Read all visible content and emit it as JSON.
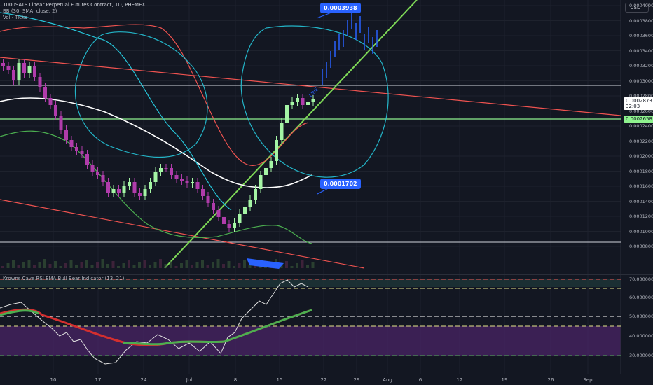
{
  "header": {
    "symbol_line": "1000SATS Linear Perpetual Futures Contract, 1D, PHEMEX",
    "indicator_bb": "BB (30, SMA, close, 2)",
    "indicator_vol": "Vol · Ticks",
    "currency": "USDT"
  },
  "price_axis": {
    "labels": [
      "0.0004000",
      "0.0003800",
      "0.0003600",
      "0.0003400",
      "0.0003200",
      "0.0003000",
      "0.0002800",
      "0.0002600",
      "0.0002400",
      "0.0002200",
      "0.0002000",
      "0.0001800",
      "0.0001600",
      "0.0001400",
      "0.0001200",
      "0.0001000",
      "0.0000800"
    ],
    "current_price": "0.0002873",
    "countdown": "32:03",
    "line_price": "0.0002658"
  },
  "callouts": {
    "upper": "0.0003938",
    "lower": "0.0001702"
  },
  "trendline_label": "LINE",
  "rsi_panel": {
    "title": "Krowns Cave RSI EMA Bull Bear Indicator (13, 21)",
    "labels": [
      "70.000000",
      "60.000000",
      "50.000000",
      "40.000000",
      "30.000000"
    ]
  },
  "time_axis": {
    "labels": [
      "10",
      "17",
      "24",
      "Jul",
      "8",
      "15",
      "22",
      "29",
      "Aug",
      "6",
      "12",
      "19",
      "26",
      "Sep"
    ]
  },
  "colors": {
    "background": "#131722",
    "bull": "#a5f5a5",
    "bear": "#b03cab",
    "bb_upper": "#ef5350",
    "bb_basis": "#ffffff",
    "bb_lower": "#26c6da",
    "support": "#8ef28e",
    "resistance": "#ef5350",
    "callout": "#2962ff",
    "rsi_line": "#e0e0e0",
    "ema_bull": "#4caf50",
    "ema_bear": "#d32f2f",
    "bear_zone": "#5b2a79"
  }
}
